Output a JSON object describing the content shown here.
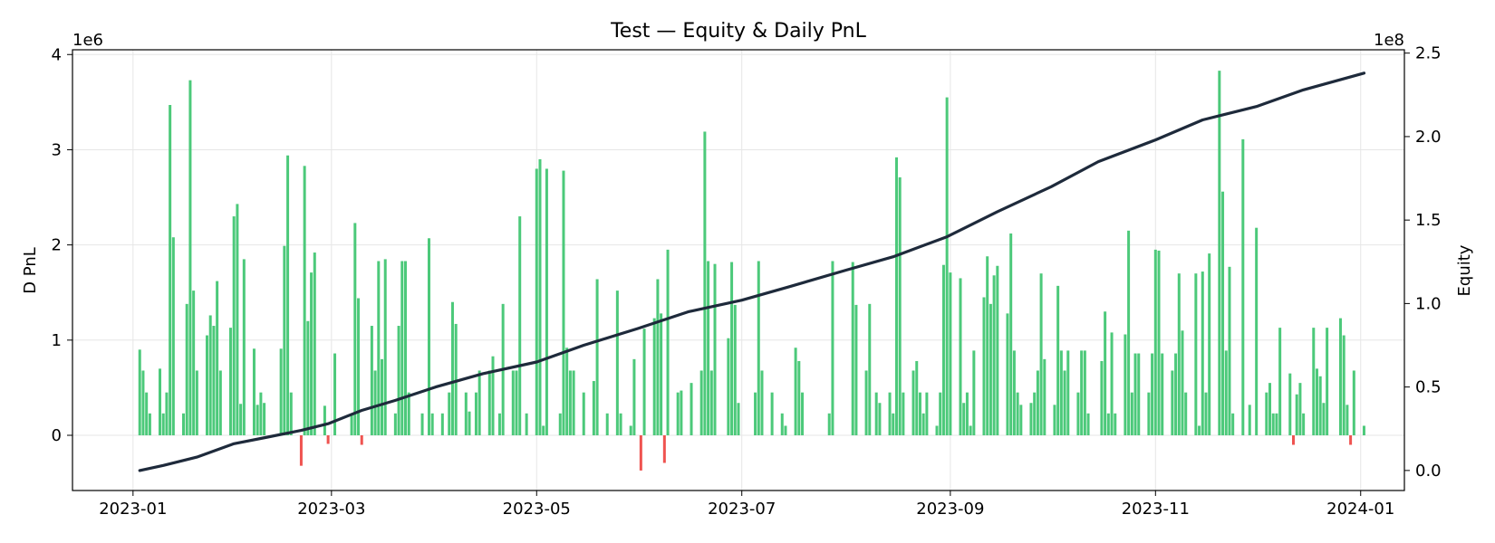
{
  "chart_data": {
    "type": "bar",
    "title": "Test — Equity & Daily PnL",
    "xlabel": "",
    "ylabel": "D PnL",
    "ylabel_right": "Equity",
    "y_offset_label": "1e6",
    "y2_offset_label": "1e8",
    "xlim": [
      "2022-12-14",
      "2024-01-14"
    ],
    "ylim": [
      -0.58,
      4.05
    ],
    "y2lim": [
      -0.12,
      2.52
    ],
    "x_ticks": [
      "2023-01",
      "2023-03",
      "2023-05",
      "2023-07",
      "2023-09",
      "2023-11",
      "2024-01"
    ],
    "y_ticks": [
      "0",
      "1",
      "2",
      "3",
      "4"
    ],
    "y2_ticks": [
      "0.0",
      "0.5",
      "1.0",
      "1.5",
      "2.0",
      "2.5"
    ],
    "grid": true,
    "colors": {
      "positive": "#4cc97a",
      "negative": "#ef5350",
      "equity": "#1e2a3b",
      "grid": "#e6e6e6"
    },
    "series": [
      {
        "name": "D PnL",
        "axis": "left",
        "points": [
          [
            "2023-01-03",
            0.9
          ],
          [
            "2023-01-04",
            0.68
          ],
          [
            "2023-01-05",
            0.45
          ],
          [
            "2023-01-06",
            0.23
          ],
          [
            "2023-01-09",
            0.7
          ],
          [
            "2023-01-10",
            0.23
          ],
          [
            "2023-01-11",
            0.45
          ],
          [
            "2023-01-12",
            3.47
          ],
          [
            "2023-01-13",
            2.08
          ],
          [
            "2023-01-16",
            0.23
          ],
          [
            "2023-01-17",
            1.38
          ],
          [
            "2023-01-18",
            3.73
          ],
          [
            "2023-01-19",
            1.52
          ],
          [
            "2023-01-20",
            0.68
          ],
          [
            "2023-01-23",
            1.05
          ],
          [
            "2023-01-24",
            1.26
          ],
          [
            "2023-01-25",
            1.15
          ],
          [
            "2023-01-26",
            1.62
          ],
          [
            "2023-01-27",
            0.68
          ],
          [
            "2023-01-30",
            1.13
          ],
          [
            "2023-01-31",
            2.3
          ],
          [
            "2023-02-01",
            2.43
          ],
          [
            "2023-02-02",
            0.33
          ],
          [
            "2023-02-03",
            1.85
          ],
          [
            "2023-02-06",
            0.91
          ],
          [
            "2023-02-07",
            0.32
          ],
          [
            "2023-02-08",
            0.45
          ],
          [
            "2023-02-09",
            0.34
          ],
          [
            "2023-02-14",
            0.91
          ],
          [
            "2023-02-15",
            1.99
          ],
          [
            "2023-02-16",
            2.94
          ],
          [
            "2023-02-17",
            0.45
          ],
          [
            "2023-02-20",
            -0.32
          ],
          [
            "2023-02-21",
            2.83
          ],
          [
            "2023-02-22",
            1.2
          ],
          [
            "2023-02-23",
            1.71
          ],
          [
            "2023-02-24",
            1.92
          ],
          [
            "2023-02-27",
            0.31
          ],
          [
            "2023-02-28",
            -0.09
          ],
          [
            "2023-03-02",
            0.86
          ],
          [
            "2023-03-07",
            0.21
          ],
          [
            "2023-03-08",
            2.23
          ],
          [
            "2023-03-09",
            1.44
          ],
          [
            "2023-03-10",
            -0.1
          ],
          [
            "2023-03-13",
            1.15
          ],
          [
            "2023-03-14",
            0.68
          ],
          [
            "2023-03-15",
            1.83
          ],
          [
            "2023-03-16",
            0.8
          ],
          [
            "2023-03-17",
            1.85
          ],
          [
            "2023-03-20",
            0.23
          ],
          [
            "2023-03-21",
            1.15
          ],
          [
            "2023-03-22",
            1.83
          ],
          [
            "2023-03-23",
            1.83
          ],
          [
            "2023-03-24",
            0.45
          ],
          [
            "2023-03-28",
            0.23
          ],
          [
            "2023-03-30",
            2.07
          ],
          [
            "2023-03-31",
            0.23
          ],
          [
            "2023-04-03",
            0.23
          ],
          [
            "2023-04-05",
            0.45
          ],
          [
            "2023-04-06",
            1.4
          ],
          [
            "2023-04-07",
            1.17
          ],
          [
            "2023-04-10",
            0.45
          ],
          [
            "2023-04-11",
            0.25
          ],
          [
            "2023-04-13",
            0.45
          ],
          [
            "2023-04-14",
            0.68
          ],
          [
            "2023-04-17",
            0.68
          ],
          [
            "2023-04-18",
            0.83
          ],
          [
            "2023-04-20",
            0.23
          ],
          [
            "2023-04-21",
            1.38
          ],
          [
            "2023-04-24",
            0.68
          ],
          [
            "2023-04-25",
            0.68
          ],
          [
            "2023-04-26",
            2.3
          ],
          [
            "2023-04-28",
            0.23
          ],
          [
            "2023-05-01",
            2.8
          ],
          [
            "2023-05-02",
            2.9
          ],
          [
            "2023-05-03",
            0.1
          ],
          [
            "2023-05-04",
            2.8
          ],
          [
            "2023-05-08",
            0.23
          ],
          [
            "2023-05-09",
            2.78
          ],
          [
            "2023-05-10",
            0.92
          ],
          [
            "2023-05-11",
            0.68
          ],
          [
            "2023-05-12",
            0.68
          ],
          [
            "2023-05-15",
            0.45
          ],
          [
            "2023-05-18",
            0.57
          ],
          [
            "2023-05-19",
            1.64
          ],
          [
            "2023-05-22",
            0.23
          ],
          [
            "2023-05-25",
            1.52
          ],
          [
            "2023-05-26",
            0.23
          ],
          [
            "2023-05-29",
            0.1
          ],
          [
            "2023-05-30",
            0.8
          ],
          [
            "2023-06-01",
            -0.37
          ],
          [
            "2023-06-02",
            1.12
          ],
          [
            "2023-06-05",
            1.23
          ],
          [
            "2023-06-06",
            1.64
          ],
          [
            "2023-06-07",
            1.28
          ],
          [
            "2023-06-08",
            -0.29
          ],
          [
            "2023-06-09",
            1.95
          ],
          [
            "2023-06-12",
            0.45
          ],
          [
            "2023-06-13",
            0.47
          ],
          [
            "2023-06-16",
            0.55
          ],
          [
            "2023-06-19",
            0.68
          ],
          [
            "2023-06-20",
            3.19
          ],
          [
            "2023-06-21",
            1.83
          ],
          [
            "2023-06-22",
            0.68
          ],
          [
            "2023-06-23",
            1.8
          ],
          [
            "2023-06-27",
            1.02
          ],
          [
            "2023-06-28",
            1.82
          ],
          [
            "2023-06-29",
            1.37
          ],
          [
            "2023-06-30",
            0.34
          ],
          [
            "2023-07-05",
            0.45
          ],
          [
            "2023-07-06",
            1.83
          ],
          [
            "2023-07-07",
            0.68
          ],
          [
            "2023-07-10",
            0.45
          ],
          [
            "2023-07-13",
            0.23
          ],
          [
            "2023-07-14",
            0.1
          ],
          [
            "2023-07-17",
            0.92
          ],
          [
            "2023-07-18",
            0.78
          ],
          [
            "2023-07-19",
            0.45
          ],
          [
            "2023-07-27",
            0.23
          ],
          [
            "2023-07-28",
            1.83
          ],
          [
            "2023-08-03",
            1.82
          ],
          [
            "2023-08-04",
            1.37
          ],
          [
            "2023-08-07",
            0.68
          ],
          [
            "2023-08-08",
            1.38
          ],
          [
            "2023-08-10",
            0.45
          ],
          [
            "2023-08-11",
            0.34
          ],
          [
            "2023-08-14",
            0.45
          ],
          [
            "2023-08-15",
            0.23
          ],
          [
            "2023-08-16",
            2.92
          ],
          [
            "2023-08-17",
            2.71
          ],
          [
            "2023-08-18",
            0.45
          ],
          [
            "2023-08-21",
            0.68
          ],
          [
            "2023-08-22",
            0.78
          ],
          [
            "2023-08-23",
            0.45
          ],
          [
            "2023-08-24",
            0.23
          ],
          [
            "2023-08-25",
            0.45
          ],
          [
            "2023-08-28",
            0.1
          ],
          [
            "2023-08-29",
            0.45
          ],
          [
            "2023-08-30",
            1.79
          ],
          [
            "2023-08-31",
            3.55
          ],
          [
            "2023-09-01",
            1.71
          ],
          [
            "2023-09-04",
            1.65
          ],
          [
            "2023-09-05",
            0.34
          ],
          [
            "2023-09-06",
            0.45
          ],
          [
            "2023-09-07",
            0.1
          ],
          [
            "2023-09-08",
            0.89
          ],
          [
            "2023-09-11",
            1.45
          ],
          [
            "2023-09-12",
            1.88
          ],
          [
            "2023-09-13",
            1.38
          ],
          [
            "2023-09-14",
            1.68
          ],
          [
            "2023-09-15",
            1.78
          ],
          [
            "2023-09-18",
            1.28
          ],
          [
            "2023-09-19",
            2.12
          ],
          [
            "2023-09-20",
            0.89
          ],
          [
            "2023-09-21",
            0.45
          ],
          [
            "2023-09-22",
            0.32
          ],
          [
            "2023-09-25",
            0.34
          ],
          [
            "2023-09-26",
            0.45
          ],
          [
            "2023-09-27",
            0.68
          ],
          [
            "2023-09-28",
            1.7
          ],
          [
            "2023-09-29",
            0.8
          ],
          [
            "2023-10-02",
            0.32
          ],
          [
            "2023-10-03",
            1.57
          ],
          [
            "2023-10-04",
            0.89
          ],
          [
            "2023-10-05",
            0.68
          ],
          [
            "2023-10-06",
            0.89
          ],
          [
            "2023-10-09",
            0.45
          ],
          [
            "2023-10-10",
            0.89
          ],
          [
            "2023-10-11",
            0.89
          ],
          [
            "2023-10-12",
            0.23
          ],
          [
            "2023-10-16",
            0.78
          ],
          [
            "2023-10-17",
            1.3
          ],
          [
            "2023-10-18",
            0.23
          ],
          [
            "2023-10-19",
            1.08
          ],
          [
            "2023-10-20",
            0.23
          ],
          [
            "2023-10-23",
            1.06
          ],
          [
            "2023-10-24",
            2.15
          ],
          [
            "2023-10-25",
            0.45
          ],
          [
            "2023-10-26",
            0.86
          ],
          [
            "2023-10-27",
            0.86
          ],
          [
            "2023-10-30",
            0.45
          ],
          [
            "2023-10-31",
            0.86
          ],
          [
            "2023-11-01",
            1.95
          ],
          [
            "2023-11-02",
            1.94
          ],
          [
            "2023-11-03",
            0.86
          ],
          [
            "2023-11-06",
            0.68
          ],
          [
            "2023-11-07",
            0.86
          ],
          [
            "2023-11-08",
            1.7
          ],
          [
            "2023-11-09",
            1.1
          ],
          [
            "2023-11-10",
            0.45
          ],
          [
            "2023-11-13",
            1.7
          ],
          [
            "2023-11-14",
            0.1
          ],
          [
            "2023-11-15",
            1.72
          ],
          [
            "2023-11-16",
            0.45
          ],
          [
            "2023-11-17",
            1.91
          ],
          [
            "2023-11-20",
            3.83
          ],
          [
            "2023-11-21",
            2.56
          ],
          [
            "2023-11-22",
            0.89
          ],
          [
            "2023-11-23",
            1.77
          ],
          [
            "2023-11-24",
            0.23
          ],
          [
            "2023-11-27",
            3.11
          ],
          [
            "2023-11-29",
            0.32
          ],
          [
            "2023-12-01",
            2.18
          ],
          [
            "2023-12-04",
            0.45
          ],
          [
            "2023-12-05",
            0.55
          ],
          [
            "2023-12-06",
            0.23
          ],
          [
            "2023-12-07",
            0.23
          ],
          [
            "2023-12-08",
            1.13
          ],
          [
            "2023-12-11",
            0.65
          ],
          [
            "2023-12-12",
            -0.1
          ],
          [
            "2023-12-13",
            0.43
          ],
          [
            "2023-12-14",
            0.55
          ],
          [
            "2023-12-15",
            0.23
          ],
          [
            "2023-12-18",
            1.13
          ],
          [
            "2023-12-19",
            0.7
          ],
          [
            "2023-12-20",
            0.62
          ],
          [
            "2023-12-21",
            0.34
          ],
          [
            "2023-12-22",
            1.13
          ],
          [
            "2023-12-26",
            1.23
          ],
          [
            "2023-12-27",
            1.05
          ],
          [
            "2023-12-28",
            0.32
          ],
          [
            "2023-12-29",
            -0.1
          ],
          [
            "2023-12-30",
            0.68
          ],
          [
            "2024-01-02",
            0.1
          ]
        ]
      },
      {
        "name": "Equity",
        "axis": "right",
        "points": [
          [
            "2023-01-03",
            0.0
          ],
          [
            "2023-01-10",
            0.03
          ],
          [
            "2023-01-20",
            0.08
          ],
          [
            "2023-01-31",
            0.16
          ],
          [
            "2023-02-10",
            0.2
          ],
          [
            "2023-02-20",
            0.24
          ],
          [
            "2023-02-28",
            0.28
          ],
          [
            "2023-03-10",
            0.36
          ],
          [
            "2023-03-20",
            0.42
          ],
          [
            "2023-04-01",
            0.5
          ],
          [
            "2023-04-15",
            0.58
          ],
          [
            "2023-05-01",
            0.65
          ],
          [
            "2023-05-15",
            0.75
          ],
          [
            "2023-05-31",
            0.85
          ],
          [
            "2023-06-15",
            0.95
          ],
          [
            "2023-07-01",
            1.02
          ],
          [
            "2023-07-15",
            1.1
          ],
          [
            "2023-08-01",
            1.2
          ],
          [
            "2023-08-15",
            1.28
          ],
          [
            "2023-08-31",
            1.4
          ],
          [
            "2023-09-15",
            1.55
          ],
          [
            "2023-10-01",
            1.7
          ],
          [
            "2023-10-15",
            1.85
          ],
          [
            "2023-11-01",
            1.98
          ],
          [
            "2023-11-15",
            2.1
          ],
          [
            "2023-12-01",
            2.18
          ],
          [
            "2023-12-15",
            2.28
          ],
          [
            "2024-01-02",
            2.38
          ]
        ]
      }
    ]
  }
}
